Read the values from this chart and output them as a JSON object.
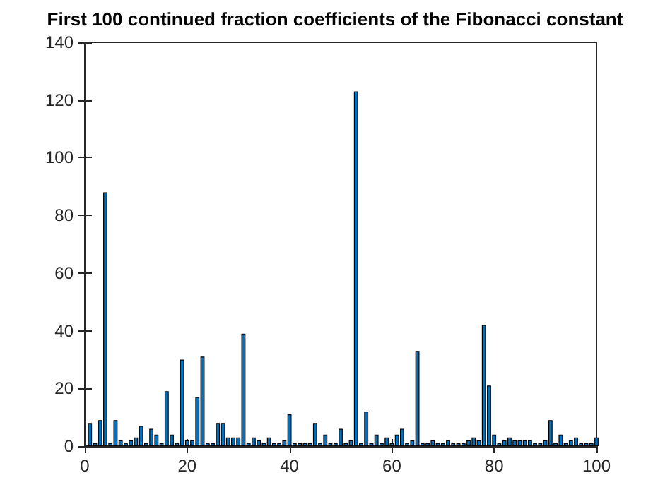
{
  "chart_data": {
    "type": "bar",
    "title": "First 100 continued fraction coefficients of the Fibonacci constant",
    "x": [
      1,
      2,
      3,
      4,
      5,
      6,
      7,
      8,
      9,
      10,
      11,
      12,
      13,
      14,
      15,
      16,
      17,
      18,
      19,
      20,
      21,
      22,
      23,
      24,
      25,
      26,
      27,
      28,
      29,
      30,
      31,
      32,
      33,
      34,
      35,
      36,
      37,
      38,
      39,
      40,
      41,
      42,
      43,
      44,
      45,
      46,
      47,
      48,
      49,
      50,
      51,
      52,
      53,
      54,
      55,
      56,
      57,
      58,
      59,
      60,
      61,
      62,
      63,
      64,
      65,
      66,
      67,
      68,
      69,
      70,
      71,
      72,
      73,
      74,
      75,
      76,
      77,
      78,
      79,
      80,
      81,
      82,
      83,
      84,
      85,
      86,
      87,
      88,
      89,
      90,
      91,
      92,
      93,
      94,
      95,
      96,
      97,
      98,
      99,
      100
    ],
    "values": [
      8,
      1,
      9,
      88,
      1,
      9,
      2,
      1,
      2,
      3,
      7,
      1,
      6,
      4,
      1,
      19,
      4,
      1,
      30,
      2,
      2,
      17,
      31,
      1,
      1,
      8,
      8,
      3,
      3,
      3,
      39,
      1,
      3,
      2,
      1,
      3,
      1,
      1,
      2,
      11,
      1,
      1,
      1,
      1,
      8,
      1,
      4,
      1,
      1,
      6,
      1,
      2,
      123,
      1,
      12,
      1,
      4,
      1,
      3,
      1,
      4,
      6,
      1,
      2,
      33,
      1,
      1,
      2,
      1,
      1,
      2,
      1,
      1,
      1,
      2,
      3,
      2,
      42,
      21,
      4,
      1,
      2,
      3,
      2,
      2,
      2,
      2,
      1,
      1,
      2,
      9,
      1,
      4,
      1,
      2,
      3,
      1,
      1,
      1,
      3
    ],
    "color": "#0072bd",
    "xlim": [
      0,
      100
    ],
    "xticks": [
      0,
      20,
      40,
      60,
      80,
      100
    ],
    "ylim": [
      0,
      140
    ],
    "yticks": [
      0,
      20,
      40,
      60,
      80,
      100,
      120,
      140
    ],
    "grid": false
  }
}
